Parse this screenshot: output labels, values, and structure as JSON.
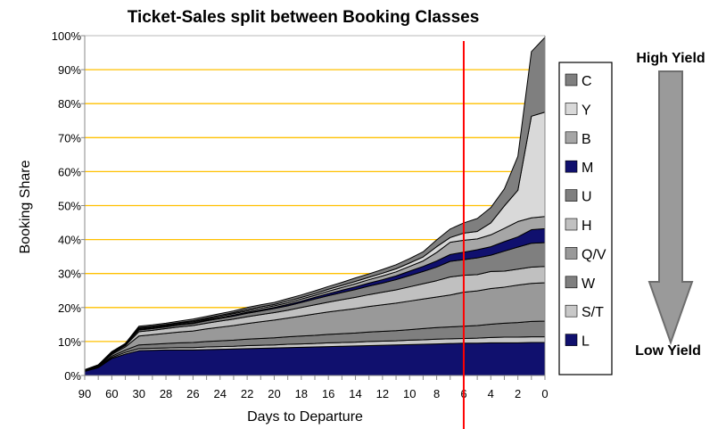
{
  "chart_data": {
    "type": "area",
    "stacked": true,
    "title": "Ticket-Sales split between Booking Classes",
    "xlabel": "Days to Departure",
    "ylabel": "Booking Share",
    "ylim": [
      0,
      100
    ],
    "y_ticks": [
      "0%",
      "10%",
      "20%",
      "30%",
      "40%",
      "50%",
      "60%",
      "70%",
      "80%",
      "90%",
      "100%"
    ],
    "grid": true,
    "grid_color": "#ffc000",
    "legend_position": "right",
    "categories": [
      90,
      75,
      60,
      45,
      30,
      29,
      28,
      27,
      26,
      25,
      24,
      23,
      22,
      21,
      20,
      19,
      18,
      17,
      16,
      15,
      14,
      13,
      12,
      11,
      10,
      9,
      8,
      7,
      6,
      5,
      4,
      3,
      2,
      1,
      0
    ],
    "x_tick_labels": [
      "90",
      "",
      "60",
      "",
      "30",
      "",
      "28",
      "",
      "26",
      "",
      "24",
      "",
      "22",
      "",
      "20",
      "",
      "18",
      "",
      "16",
      "",
      "14",
      "",
      "12",
      "",
      "10",
      "",
      "8",
      "",
      "6",
      "",
      "4",
      "",
      "2",
      "",
      "0"
    ],
    "series": [
      {
        "name": "L",
        "color": "#10106e",
        "values": [
          1.2,
          2.3,
          5.0,
          6.3,
          7.3,
          7.4,
          7.5,
          7.5,
          7.5,
          7.6,
          7.7,
          7.8,
          7.9,
          8.0,
          8.1,
          8.2,
          8.3,
          8.4,
          8.5,
          8.6,
          8.7,
          8.8,
          8.9,
          9.0,
          9.1,
          9.2,
          9.3,
          9.4,
          9.5,
          9.5,
          9.6,
          9.6,
          9.6,
          9.7,
          9.7
        ]
      },
      {
        "name": "S/T",
        "color": "#c8c8c8",
        "values": [
          0.1,
          0.2,
          0.3,
          0.5,
          0.6,
          0.6,
          0.6,
          0.7,
          0.7,
          0.8,
          0.8,
          0.8,
          0.9,
          0.9,
          0.9,
          1.0,
          1.0,
          1.0,
          1.1,
          1.1,
          1.1,
          1.2,
          1.2,
          1.2,
          1.3,
          1.3,
          1.4,
          1.4,
          1.4,
          1.5,
          1.6,
          1.7,
          1.7,
          1.7,
          1.7
        ]
      },
      {
        "name": "W",
        "color": "#7f7f7f",
        "values": [
          0.1,
          0.2,
          0.4,
          0.7,
          1.1,
          1.2,
          1.3,
          1.4,
          1.5,
          1.6,
          1.7,
          1.8,
          1.9,
          2.0,
          2.1,
          2.2,
          2.3,
          2.4,
          2.5,
          2.6,
          2.7,
          2.8,
          2.9,
          3.0,
          3.1,
          3.3,
          3.4,
          3.5,
          3.6,
          3.7,
          3.9,
          4.1,
          4.3,
          4.5,
          4.6
        ]
      },
      {
        "name": "Q/V",
        "color": "#999999",
        "values": [
          0.1,
          0.2,
          0.5,
          0.9,
          2.6,
          2.8,
          3.0,
          3.2,
          3.4,
          3.7,
          4.0,
          4.3,
          4.6,
          4.9,
          5.2,
          5.5,
          5.9,
          6.3,
          6.6,
          6.9,
          7.2,
          7.5,
          7.8,
          8.1,
          8.4,
          8.7,
          9.0,
          9.4,
          10.0,
          10.2,
          10.5,
          10.6,
          11.0,
          11.2,
          11.3
        ]
      },
      {
        "name": "H",
        "color": "#c0c0c0",
        "values": [
          0.05,
          0.1,
          0.3,
          0.4,
          1.3,
          1.3,
          1.4,
          1.5,
          1.6,
          1.7,
          1.8,
          1.9,
          2.0,
          2.1,
          2.2,
          2.3,
          2.5,
          2.7,
          2.9,
          3.1,
          3.3,
          3.5,
          3.7,
          3.9,
          4.2,
          4.5,
          4.8,
          5.3,
          5.0,
          4.8,
          5.0,
          4.7,
          4.7,
          4.8,
          4.8
        ]
      },
      {
        "name": "U",
        "color": "#7f7f7f",
        "values": [
          0.05,
          0.05,
          0.2,
          0.3,
          0.5,
          0.5,
          0.5,
          0.6,
          0.6,
          0.7,
          0.8,
          0.9,
          1.0,
          1.1,
          1.2,
          1.3,
          1.5,
          1.7,
          1.9,
          2.1,
          2.3,
          2.5,
          2.7,
          3.0,
          3.3,
          3.6,
          4.0,
          4.6,
          4.6,
          4.9,
          4.8,
          5.9,
          6.5,
          7.0,
          7.0
        ]
      },
      {
        "name": "M",
        "color": "#10106e",
        "values": [
          0,
          0,
          0.05,
          0.05,
          0.2,
          0.2,
          0.2,
          0.2,
          0.2,
          0.2,
          0.2,
          0.3,
          0.3,
          0.3,
          0.3,
          0.4,
          0.4,
          0.5,
          0.6,
          0.7,
          0.8,
          0.9,
          1.0,
          1.1,
          1.3,
          1.5,
          1.8,
          2.0,
          2.2,
          2.4,
          2.5,
          2.8,
          3.0,
          4.0,
          4.1
        ]
      },
      {
        "name": "B",
        "color": "#a6a6a6",
        "values": [
          0,
          0,
          0.05,
          0.05,
          0.3,
          0.3,
          0.3,
          0.3,
          0.3,
          0.3,
          0.4,
          0.4,
          0.4,
          0.5,
          0.5,
          0.5,
          0.6,
          0.6,
          0.7,
          0.8,
          0.9,
          1.0,
          1.1,
          1.2,
          1.4,
          1.6,
          2.5,
          3.6,
          3.5,
          3.2,
          3.5,
          3.9,
          4.5,
          3.5,
          3.6
        ]
      },
      {
        "name": "Y",
        "color": "#d9d9d9",
        "values": [
          0,
          0,
          0.05,
          0.05,
          0.2,
          0.2,
          0.2,
          0.2,
          0.3,
          0.3,
          0.3,
          0.3,
          0.4,
          0.4,
          0.4,
          0.5,
          0.5,
          0.5,
          0.6,
          0.6,
          0.7,
          0.7,
          0.8,
          0.9,
          1.0,
          1.2,
          1.7,
          1.4,
          2.1,
          2.2,
          3.5,
          6.6,
          9.2,
          29.9,
          30.7
        ]
      },
      {
        "name": "C",
        "color": "#7f7f7f",
        "values": [
          0.1,
          0.1,
          0.2,
          0.2,
          0.4,
          0.4,
          0.4,
          0.4,
          0.5,
          0.5,
          0.5,
          0.5,
          0.6,
          0.6,
          0.6,
          0.7,
          0.7,
          0.8,
          0.8,
          0.9,
          1.0,
          1.0,
          1.1,
          1.2,
          1.3,
          1.5,
          2.0,
          2.5,
          3.0,
          3.8,
          4.5,
          5.0,
          10.0,
          19.0,
          22.0
        ]
      }
    ],
    "marker_line": {
      "x": 6,
      "color": "#ff0000"
    },
    "annotations": {
      "top": "High Yield",
      "bottom": "Low Yield"
    }
  }
}
